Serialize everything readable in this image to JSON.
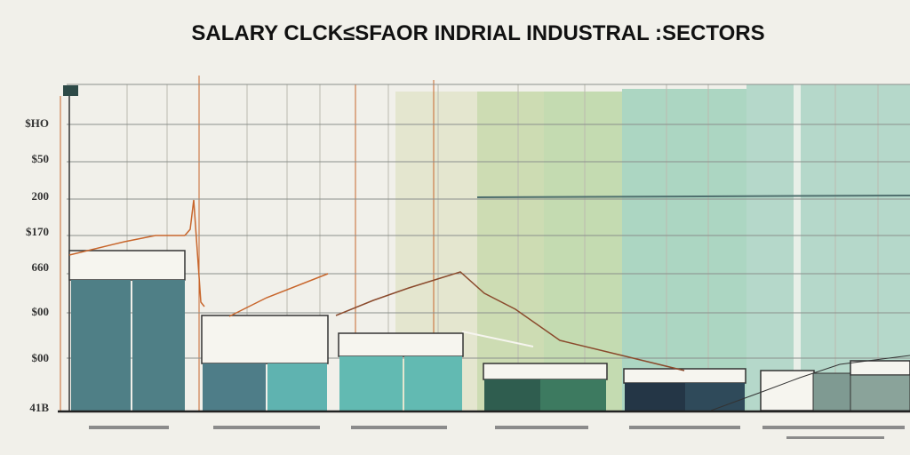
{
  "title": "SALARY CLCK≤SFAOR INDRIAL INDUSTRAL :SECTORS",
  "y_axis_labels": [
    "$HO",
    "$50",
    "200",
    "$170",
    "660",
    "$00",
    "$00",
    "41B"
  ]
}
